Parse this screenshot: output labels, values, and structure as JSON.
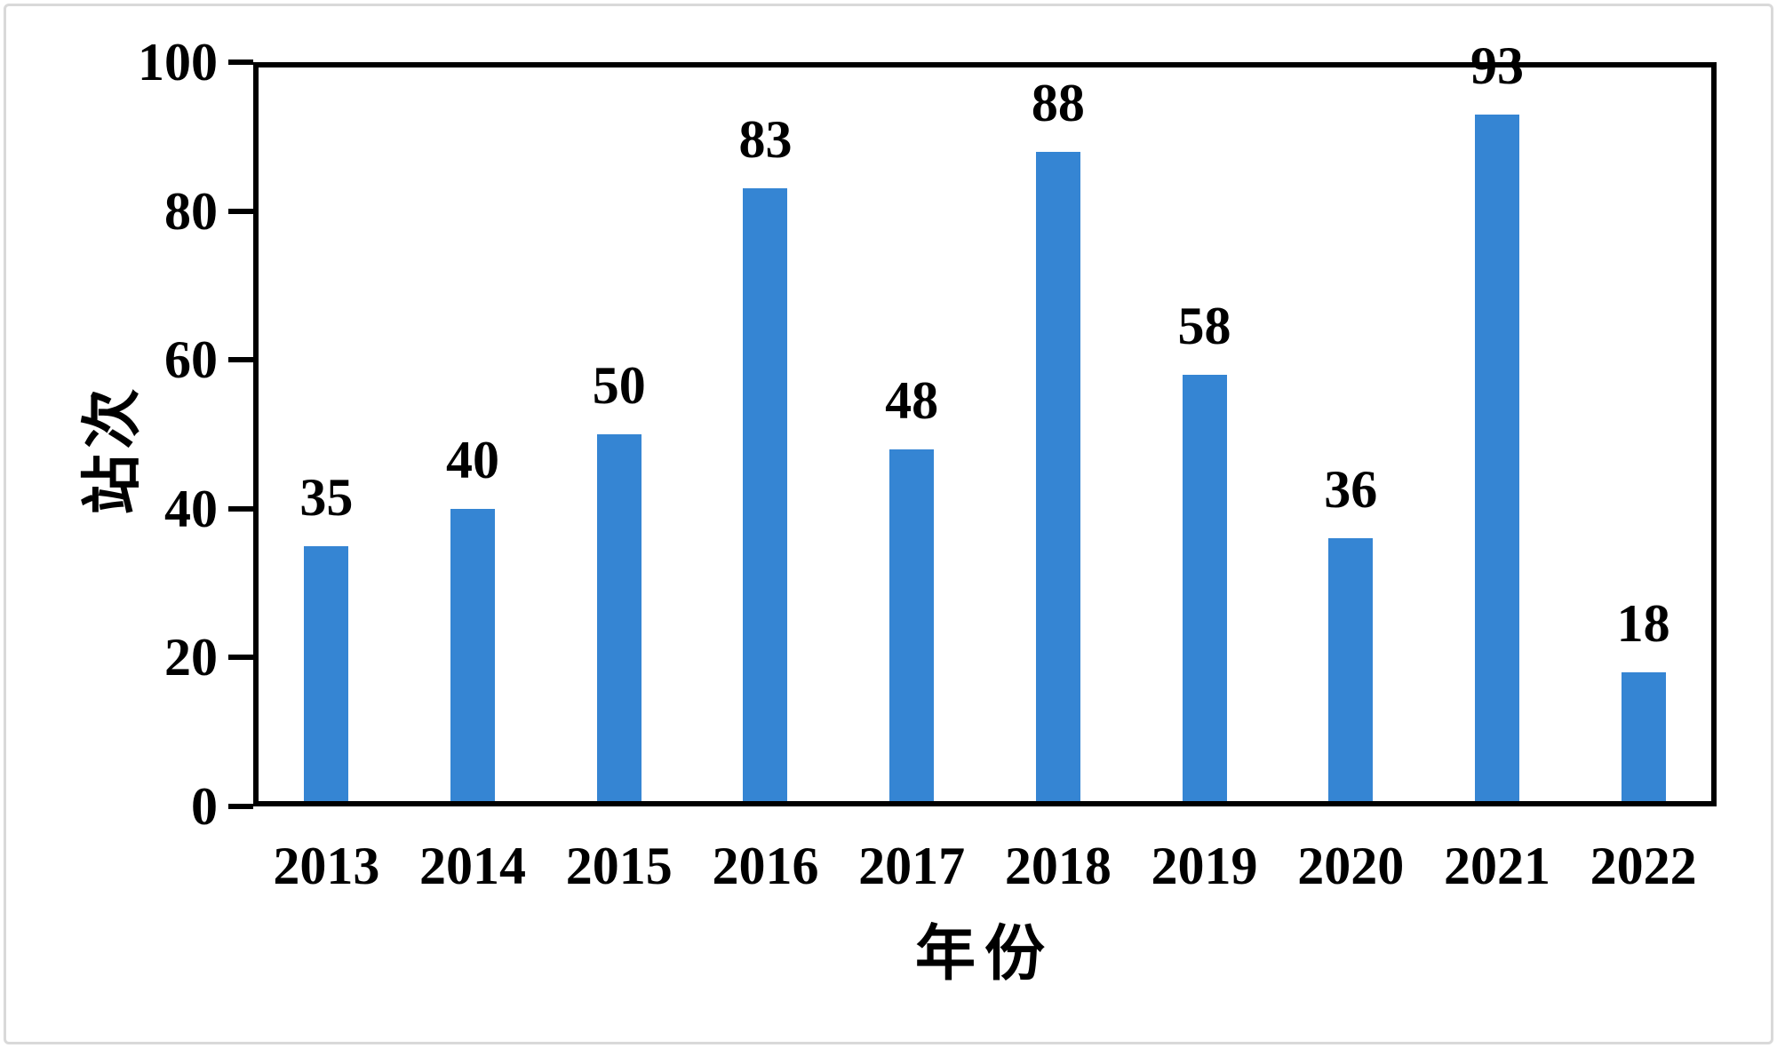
{
  "chart_data": {
    "type": "bar",
    "title": "",
    "categories": [
      "2013",
      "2014",
      "2015",
      "2016",
      "2017",
      "2018",
      "2019",
      "2020",
      "2021",
      "2022"
    ],
    "values": [
      35,
      40,
      50,
      83,
      48,
      88,
      58,
      36,
      93,
      18
    ],
    "xlabel": "年份",
    "ylabel": "站次",
    "ylim": [
      0,
      100
    ],
    "yticks": [
      0,
      20,
      40,
      60,
      80,
      100
    ],
    "bar_color": "#3585d3",
    "axis_color": "#000000",
    "text_color": "#000000",
    "page_border_color": "#d9d9d9",
    "grid": false,
    "legend": "none",
    "data_labels": true
  }
}
